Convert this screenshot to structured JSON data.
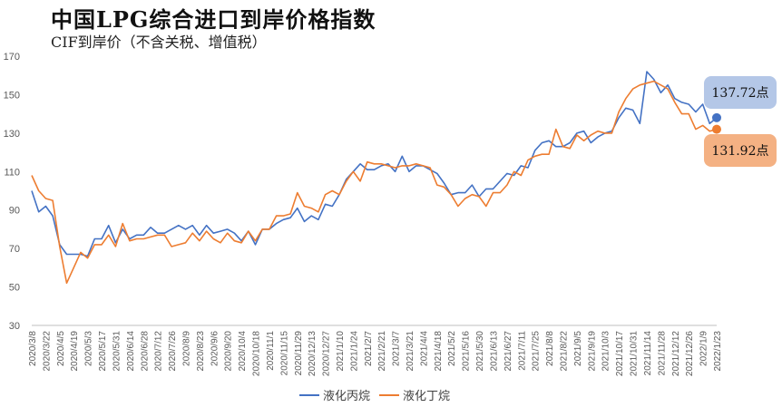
{
  "title": "中国LPG综合进口到岸价格指数",
  "subtitle": "CIF到岸价（不含关税、增值税）",
  "chart_data": {
    "type": "line",
    "xlabel": "",
    "ylabel": "",
    "ylim": [
      30,
      170
    ],
    "yticks": [
      30,
      50,
      70,
      90,
      110,
      130,
      150,
      170
    ],
    "grid": false,
    "legend_position": "bottom",
    "x": [
      "2020/3/8",
      "2020/3/15",
      "2020/3/22",
      "2020/3/29",
      "2020/4/5",
      "2020/4/12",
      "2020/4/19",
      "2020/4/26",
      "2020/5/3",
      "2020/5/10",
      "2020/5/17",
      "2020/5/24",
      "2020/5/31",
      "2020/6/7",
      "2020/6/14",
      "2020/6/21",
      "2020/6/28",
      "2020/7/5",
      "2020/7/12",
      "2020/7/19",
      "2020/7/26",
      "2020/8/2",
      "2020/8/9",
      "2020/8/16",
      "2020/8/23",
      "2020/8/30",
      "2020/9/6",
      "2020/9/13",
      "2020/9/20",
      "2020/9/27",
      "2020/10/4",
      "2020/10/11",
      "2020/10/18",
      "2020/10/25",
      "2020/11/1",
      "2020/11/8",
      "2020/11/15",
      "2020/11/22",
      "2020/11/29",
      "2020/12/6",
      "2020/12/13",
      "2020/12/20",
      "2020/12/27",
      "2021/1/3",
      "2021/1/10",
      "2021/1/17",
      "2021/1/24",
      "2021/1/31",
      "2021/2/7",
      "2021/2/14",
      "2021/2/21",
      "2021/2/28",
      "2021/3/7",
      "2021/3/14",
      "2021/3/21",
      "2021/3/28",
      "2021/4/4",
      "2021/4/11",
      "2021/4/18",
      "2021/4/25",
      "2021/5/2",
      "2021/5/9",
      "2021/5/16",
      "2021/5/23",
      "2021/5/30",
      "2021/6/6",
      "2021/6/13",
      "2021/6/20",
      "2021/6/27",
      "2021/7/4",
      "2021/7/11",
      "2021/7/18",
      "2021/7/25",
      "2021/8/1",
      "2021/8/8",
      "2021/8/15",
      "2021/8/22",
      "2021/8/29",
      "2021/9/5",
      "2021/9/12",
      "2021/9/19",
      "2021/9/26",
      "2021/10/3",
      "2021/10/10",
      "2021/10/17",
      "2021/10/24",
      "2021/10/31",
      "2021/11/7",
      "2021/11/14",
      "2021/11/21",
      "2021/11/28",
      "2021/12/5",
      "2021/12/12",
      "2021/12/19",
      "2021/12/26",
      "2022/1/2",
      "2022/1/9",
      "2022/1/16",
      "2022/1/23"
    ],
    "xtick_labels": [
      "2020/3/8",
      "2020/3/22",
      "2020/4/5",
      "2020/4/19",
      "2020/5/3",
      "2020/5/17",
      "2020/5/31",
      "2020/6/14",
      "2020/6/28",
      "2020/7/12",
      "2020/7/26",
      "2020/8/9",
      "2020/8/23",
      "2020/9/6",
      "2020/9/20",
      "2020/10/4",
      "2020/10/18",
      "2020/11/1",
      "2020/11/15",
      "2020/11/29",
      "2020/12/13",
      "2020/12/27",
      "2021/1/10",
      "2021/1/24",
      "2021/2/7",
      "2021/2/21",
      "2021/3/7",
      "2021/3/21",
      "2021/4/4",
      "2021/4/18",
      "2021/5/2",
      "2021/5/16",
      "2021/5/30",
      "2021/6/13",
      "2021/6/27",
      "2021/7/11",
      "2021/7/25",
      "2021/8/8",
      "2021/8/22",
      "2021/9/5",
      "2021/9/19",
      "2021/10/3",
      "2021/10/17",
      "2021/10/31",
      "2021/11/14",
      "2021/11/28",
      "2021/12/12",
      "2021/12/26",
      "2022/1/9",
      "2022/1/23"
    ],
    "series": [
      {
        "name": "液化丙烷",
        "color": "#4472c4",
        "values": [
          100,
          89,
          92,
          87,
          72,
          67,
          67,
          67,
          66,
          75,
          75,
          82,
          73,
          80,
          75,
          77,
          77,
          81,
          78,
          78,
          80,
          82,
          80,
          82,
          77,
          82,
          78,
          79,
          80,
          78,
          74,
          79,
          72,
          80,
          80,
          83,
          85,
          86,
          91,
          84,
          87,
          85,
          93,
          92,
          98,
          106,
          110,
          114,
          111,
          111,
          113,
          114,
          110,
          118,
          110,
          113,
          113,
          111,
          109,
          104,
          98,
          99,
          99,
          103,
          97,
          101,
          101,
          105,
          109,
          108,
          113,
          112,
          121,
          125,
          126,
          123,
          123,
          125,
          130,
          131,
          125,
          128,
          130,
          131,
          138,
          143,
          142,
          135,
          162,
          158,
          151,
          155,
          148,
          146,
          145,
          141,
          145,
          135,
          138
        ]
      },
      {
        "name": "液化丁烷",
        "color": "#ed7d31",
        "values": [
          108,
          100,
          96,
          95,
          71,
          52,
          60,
          68,
          65,
          72,
          72,
          77,
          71,
          83,
          74,
          75,
          75,
          76,
          77,
          77,
          71,
          72,
          73,
          78,
          74,
          79,
          75,
          73,
          78,
          74,
          73,
          79,
          74,
          80,
          80,
          87,
          87,
          88,
          99,
          92,
          91,
          89,
          98,
          100,
          98,
          105,
          110,
          105,
          115,
          114,
          114,
          113,
          112,
          113,
          113,
          114,
          113,
          112,
          103,
          102,
          98,
          92,
          96,
          98,
          97,
          92,
          99,
          99,
          103,
          110,
          108,
          116,
          118,
          119,
          119,
          132,
          123,
          122,
          129,
          126,
          129,
          131,
          130,
          130,
          141,
          148,
          153,
          155,
          156,
          157,
          155,
          153,
          146,
          140,
          140,
          132,
          134,
          131,
          132
        ]
      }
    ],
    "annotations": [
      {
        "series": "液化丙烷",
        "text": "137.72点"
      },
      {
        "series": "液化丁烷",
        "text": "131.92点"
      }
    ]
  }
}
